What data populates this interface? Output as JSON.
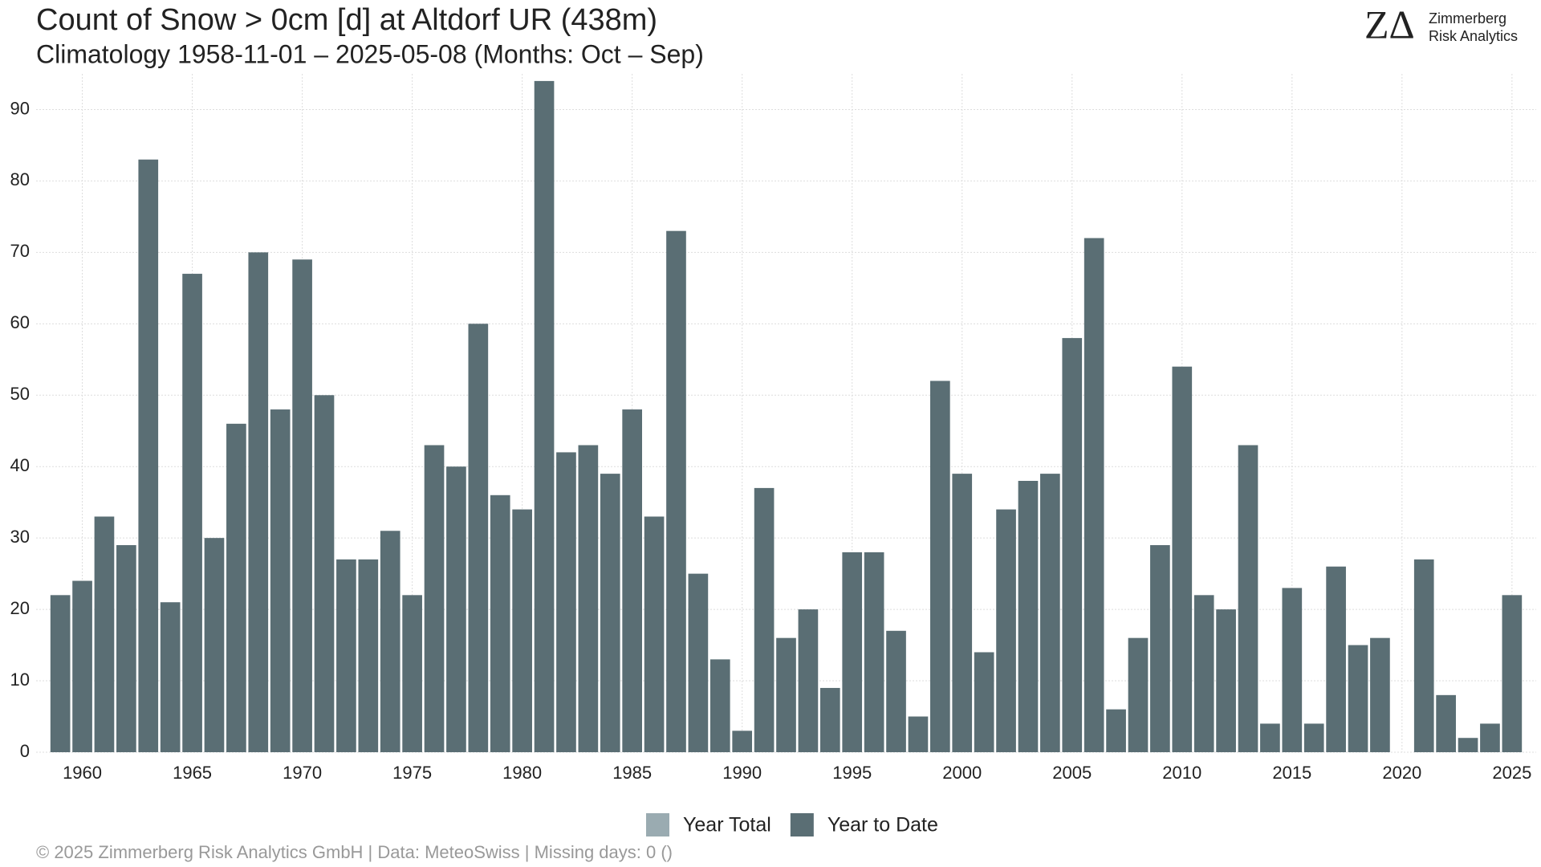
{
  "chart_data": {
    "type": "bar",
    "title": "Count of Snow > 0cm [d] at Altdorf  UR (438m)",
    "subtitle": "Climatology 1958-11-01 – 2025-05-08 (Months: Oct – Sep)",
    "x": [
      1959,
      1960,
      1961,
      1962,
      1963,
      1964,
      1965,
      1966,
      1967,
      1968,
      1969,
      1970,
      1971,
      1972,
      1973,
      1974,
      1975,
      1976,
      1977,
      1978,
      1979,
      1980,
      1981,
      1982,
      1983,
      1984,
      1985,
      1986,
      1987,
      1988,
      1989,
      1990,
      1991,
      1992,
      1993,
      1994,
      1995,
      1996,
      1997,
      1998,
      1999,
      2000,
      2001,
      2002,
      2003,
      2004,
      2005,
      2006,
      2007,
      2008,
      2009,
      2010,
      2011,
      2012,
      2013,
      2014,
      2015,
      2016,
      2017,
      2018,
      2019,
      2020,
      2021,
      2022,
      2023,
      2024,
      2025
    ],
    "series": [
      {
        "name": "Year Total",
        "color": "#9aabb1",
        "values": [
          null,
          null,
          null,
          null,
          null,
          null,
          null,
          null,
          null,
          null,
          null,
          null,
          null,
          null,
          null,
          null,
          null,
          null,
          null,
          null,
          null,
          null,
          null,
          null,
          null,
          null,
          null,
          null,
          null,
          null,
          null,
          null,
          null,
          null,
          null,
          null,
          null,
          null,
          null,
          null,
          null,
          null,
          null,
          null,
          null,
          null,
          null,
          null,
          null,
          null,
          null,
          null,
          null,
          null,
          null,
          null,
          null,
          null,
          null,
          null,
          null,
          null,
          null,
          null,
          null,
          null,
          null
        ]
      },
      {
        "name": "Year to Date",
        "color": "#5a6e74",
        "values": [
          22,
          24,
          33,
          29,
          83,
          21,
          67,
          30,
          46,
          70,
          48,
          69,
          50,
          27,
          27,
          31,
          22,
          43,
          40,
          60,
          36,
          34,
          94,
          42,
          43,
          39,
          48,
          33,
          73,
          25,
          13,
          3,
          37,
          16,
          20,
          9,
          28,
          28,
          17,
          5,
          52,
          39,
          14,
          34,
          38,
          39,
          58,
          72,
          6,
          16,
          29,
          54,
          22,
          20,
          43,
          4,
          23,
          4,
          26,
          15,
          16,
          0,
          27,
          8,
          2,
          4,
          22
        ]
      }
    ],
    "xlim": [
      1957.9,
      2026.1
    ],
    "xticks": [
      1960,
      1965,
      1970,
      1975,
      1980,
      1985,
      1990,
      1995,
      2000,
      2005,
      2010,
      2015,
      2020,
      2025
    ],
    "ylim": [
      0,
      95
    ],
    "yticks": [
      0,
      10,
      20,
      30,
      40,
      50,
      60,
      70,
      80,
      90
    ],
    "grid": true,
    "logo": {
      "mark": "ZΔ",
      "line1": "Zimmerberg",
      "line2": "Risk Analytics"
    },
    "footer": "©  2025 Zimmerberg Risk Analytics GmbH | Data: MeteoSwiss | Missing days: 0 ()"
  }
}
